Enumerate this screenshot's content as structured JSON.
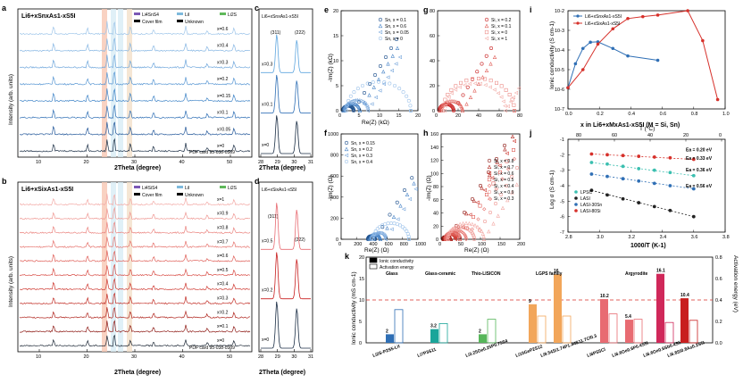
{
  "figure": {
    "panels": {
      "a": {
        "letter": "a",
        "title": "Li6+xSnxAs1-xS5I",
        "legend": [
          "Li4SnS4",
          "LiI",
          "Li2S",
          "Cover film",
          "Unknown"
        ],
        "curve_labels": [
          "x=0.6",
          "x=0.4",
          "x=0.3",
          "x=0.2",
          "x=0.15",
          "x=0.1",
          "x=0.05",
          "x=0"
        ],
        "pdf_card": "PDF card 95-038-0389",
        "xlabel": "2Theta (degree)",
        "ylabel": "Intensity (arb. units)",
        "xticks": [
          "10",
          "20",
          "30",
          "40",
          "50"
        ]
      },
      "b": {
        "letter": "b",
        "title": "Li6+xSixAs1-xS5I",
        "legend": [
          "Li4SiS4",
          "LiI",
          "Li2S",
          "Cover film",
          "Unknown"
        ],
        "curve_labels": [
          "x=1",
          "x=0.9",
          "x=0.8",
          "x=0.7",
          "x=0.6",
          "x=0.5",
          "x=0.4",
          "x=0.3",
          "x=0.2",
          "x=0.1",
          "x=0"
        ],
        "pdf_card": "PDF card 95-038-0389",
        "xlabel": "2Theta (degree)",
        "ylabel": "Intensity (arb. units)",
        "xticks": [
          "10",
          "20",
          "30",
          "40",
          "50"
        ]
      },
      "c": {
        "letter": "c",
        "title": "Li6+xSnxAs1-xS5I",
        "peaks": [
          "(311)",
          "(222)"
        ],
        "curve_labels": [
          "x=0.3",
          "x=0.1",
          "x=0"
        ],
        "xlabel": "2Theta (degree)",
        "xticks": [
          "28",
          "29",
          "30",
          "31"
        ]
      },
      "d": {
        "letter": "d",
        "title": "Li6+xSixAs1-xS5I",
        "peaks": [
          "(311)",
          "(222)"
        ],
        "curve_labels": [
          "x=0.5",
          "x=0.2",
          "x=0"
        ],
        "xlabel": "2Theta (degree)",
        "xticks": [
          "28",
          "29",
          "30",
          "31"
        ]
      },
      "e": {
        "letter": "e",
        "legend": [
          "Sn, x = 0.1",
          "Sn, x = 0.6",
          "Sn, x = 0.05",
          "Sn, x = 0"
        ],
        "xlabel": "Re(Z) (kΩ)",
        "ylabel": "-Im(Z) (kΩ)",
        "xticks": [
          "0",
          "5",
          "10",
          "15",
          "20"
        ],
        "yticks": [
          "0",
          "5",
          "10",
          "15",
          "20"
        ]
      },
      "f": {
        "letter": "f",
        "legend": [
          "Sn, x = 0.15",
          "Sn, x = 0.2",
          "Sn, x = 0.3",
          "Sn, x = 0.4"
        ],
        "xlabel": "Re(Z) (Ω)",
        "ylabel": "-Im(Z) (Ω)",
        "xticks": [
          "0",
          "200",
          "400",
          "600",
          "800",
          "1000"
        ],
        "yticks": [
          "0",
          "200",
          "400",
          "600",
          "800",
          "1000"
        ]
      },
      "g": {
        "letter": "g",
        "legend": [
          "Si, x = 0.2",
          "Si, x = 0.1",
          "Si, x = 0",
          "Si, x = 1"
        ],
        "xticks": [
          "0",
          "20",
          "40",
          "60",
          "80"
        ],
        "yticks": [
          "0",
          "20",
          "40",
          "60",
          "80"
        ]
      },
      "h": {
        "letter": "h",
        "legend": [
          "Si, x = 0.8",
          "Si, x = 0.7",
          "Si, x = 0.6",
          "Si, x = 0.5",
          "Si, x = 0.4",
          "Si, x = 0.9",
          "Si, x = 0.3"
        ],
        "xlabel": "Re(Z) (Ω)",
        "ylabel": "-Im(Z) (Ω)",
        "xticks": [
          "0",
          "50",
          "100",
          "150",
          "200"
        ],
        "yticks": [
          "0",
          "20",
          "40",
          "60",
          "80",
          "100",
          "120",
          "140",
          "160"
        ]
      },
      "i": {
        "letter": "i",
        "legend": [
          "Li6+xSnxAs1-xS5I",
          "Li6+xSixAs1-xS5I"
        ],
        "xlabel": "x in Li6+xMxAs1-xS5I (M = Si, Sn)",
        "ylabel": "Ionic conductivity (S cm-1)",
        "xticks": [
          "0.0",
          "0.2",
          "0.4",
          "0.6",
          "0.8",
          "1.0"
        ],
        "yticks": [
          "10-7",
          "10-6",
          "10-5",
          "10-4",
          "10-3",
          "10-2"
        ]
      },
      "j": {
        "letter": "j",
        "top_label": "T (°C)",
        "top_ticks": [
          "80",
          "60",
          "40",
          "20",
          "0"
        ],
        "xlabel": "1000/T (K-1)",
        "ylabel": "Log σ (S cm-1)",
        "xticks": [
          "2.8",
          "3.0",
          "3.2",
          "3.4",
          "3.6",
          "3.8"
        ],
        "yticks": [
          "-1",
          "-2",
          "-3",
          "-4",
          "-5",
          "-6",
          "-7"
        ],
        "ea": [
          "Ea = 0.20 eV",
          "Ea = 0.33 eV",
          "Ea = 0.36 eV",
          "Ea = 0.56 eV"
        ],
        "legend": [
          "LPSC",
          "LASI",
          "LASI-30Sn",
          "LASI-80Si"
        ]
      },
      "k": {
        "letter": "k",
        "legend": [
          "Ionic conductivity",
          "Activation energy"
        ],
        "groups": [
          "Glass",
          "Glass-ceramic",
          "Thio-LISICON",
          "LGPS family",
          "Argyrodite"
        ],
        "ylabel_left": "Ionic conductivity (mS cm-1)",
        "ylabel_right": "Activation energy (eV)",
        "yticks_left": [
          "0",
          "5",
          "10",
          "15",
          "20"
        ],
        "yticks_right": [
          "0.0",
          "0.2",
          "0.4",
          "0.6",
          "0.8"
        ]
      }
    }
  },
  "chart_data": [
    {
      "type": "line",
      "title": "Ionic conductivity vs x (panel i)",
      "xlabel": "x in Li6+xMxAs1-xS5I (M = Si, Sn)",
      "ylabel": "Ionic conductivity (S cm-1)",
      "yscale": "log",
      "ylim": [
        1e-07,
        0.01
      ],
      "xlim": [
        0,
        1.05
      ],
      "series": [
        {
          "name": "Li6+xSnxAs1-xS5I",
          "color": "#2f6fb5",
          "x": [
            0,
            0.05,
            0.1,
            0.15,
            0.2,
            0.3,
            0.4,
            0.6
          ],
          "y": [
            1.2e-06,
            2e-05,
            0.00012,
            0.00025,
            0.00026,
            0.00012,
            5e-05,
            3e-05
          ]
        },
        {
          "name": "Li6+xSixAs1-xS5I",
          "color": "#d6302a",
          "x": [
            0,
            0.1,
            0.2,
            0.3,
            0.4,
            0.5,
            0.6,
            0.8,
            0.9,
            1.0
          ],
          "y": [
            1.2e-06,
            1e-05,
            0.0002,
            0.0012,
            0.004,
            0.005,
            0.006,
            0.01,
            0.0003,
            3e-07
          ]
        }
      ]
    },
    {
      "type": "scatter",
      "title": "Arrhenius plot (panel j)",
      "xlabel": "1000/T (K-1)",
      "ylabel": "Log σ (S cm-1)",
      "xlim": [
        2.8,
        3.8
      ],
      "ylim": [
        -7,
        -1
      ],
      "series": [
        {
          "name": "LPSC",
          "color": "#3bbfb0",
          "ea": "0.33 eV",
          "x": [
            2.95,
            3.05,
            3.15,
            3.25,
            3.35,
            3.45,
            3.6
          ],
          "y": [
            -2.5,
            -2.6,
            -2.75,
            -2.9,
            -3.0,
            -3.15,
            -3.35
          ]
        },
        {
          "name": "LASI",
          "color": "#222222",
          "ea": "0.56 eV",
          "x": [
            2.95,
            3.05,
            3.15,
            3.25,
            3.35,
            3.45,
            3.6
          ],
          "y": [
            -4.3,
            -4.6,
            -4.85,
            -5.1,
            -5.35,
            -5.6,
            -6.0
          ]
        },
        {
          "name": "LASI-30Sn",
          "color": "#2f6fb5",
          "ea": "0.36 eV",
          "x": [
            2.95,
            3.05,
            3.15,
            3.25,
            3.35,
            3.45,
            3.6
          ],
          "y": [
            -3.25,
            -3.4,
            -3.55,
            -3.7,
            -3.85,
            -4.0,
            -4.2
          ]
        },
        {
          "name": "LASI-80Si",
          "color": "#d6302a",
          "ea": "0.20 eV",
          "x": [
            2.95,
            3.05,
            3.15,
            3.25,
            3.35,
            3.45,
            3.6
          ],
          "y": [
            -1.95,
            -2.0,
            -2.05,
            -2.1,
            -2.15,
            -2.2,
            -2.3
          ]
        }
      ]
    },
    {
      "type": "bar",
      "title": "Comparison of sulfide electrolytes (panel k)",
      "ylabel": "Ionic conductivity (mS cm-1)",
      "ylabel_right": "Activation energy (eV)",
      "ylim": [
        0,
        20
      ],
      "ylim_right": [
        0,
        0.8
      ],
      "reference_line": 10,
      "categories": [
        "Li2S-P2S5-LiI",
        "Li7P3S11",
        "Li3.25Ge0.25P0.75S4",
        "Li10GeP2S12",
        "Li9.54Si1.74P1.44S11.7Cl0.3",
        "Li6PS5Cl",
        "Li6.6Ge0.6P0.4S5I",
        "Li6.6Ge0.6Sb0.4S5I",
        "Li6.8Si0.8As0.2S5I"
      ],
      "group_of": [
        "Glass",
        "Glass-ceramic",
        "Thio-LISICON",
        "LGPS family",
        "LGPS family",
        "Argyrodite",
        "Argyrodite",
        "Argyrodite",
        "Argyrodite"
      ],
      "colors": [
        "#2f6fb5",
        "#1aa59a",
        "#56b65a",
        "#f2a65a",
        "#f2a65a",
        "#e86b72",
        "#e86b72",
        "#d0285a",
        "#c81e1e"
      ],
      "conductivity": [
        2,
        3.2,
        2,
        9,
        16,
        10.2,
        5.4,
        16.1,
        10.4
      ],
      "conductivity_labels": [
        "2",
        "3.2",
        "2",
        "9",
        "16",
        "10.2",
        "5.4",
        "16.1",
        "10.4"
      ],
      "activation_energy": [
        0.31,
        0.18,
        0.22,
        0.25,
        0.25,
        0.27,
        0.22,
        0.19,
        0.21
      ]
    }
  ]
}
